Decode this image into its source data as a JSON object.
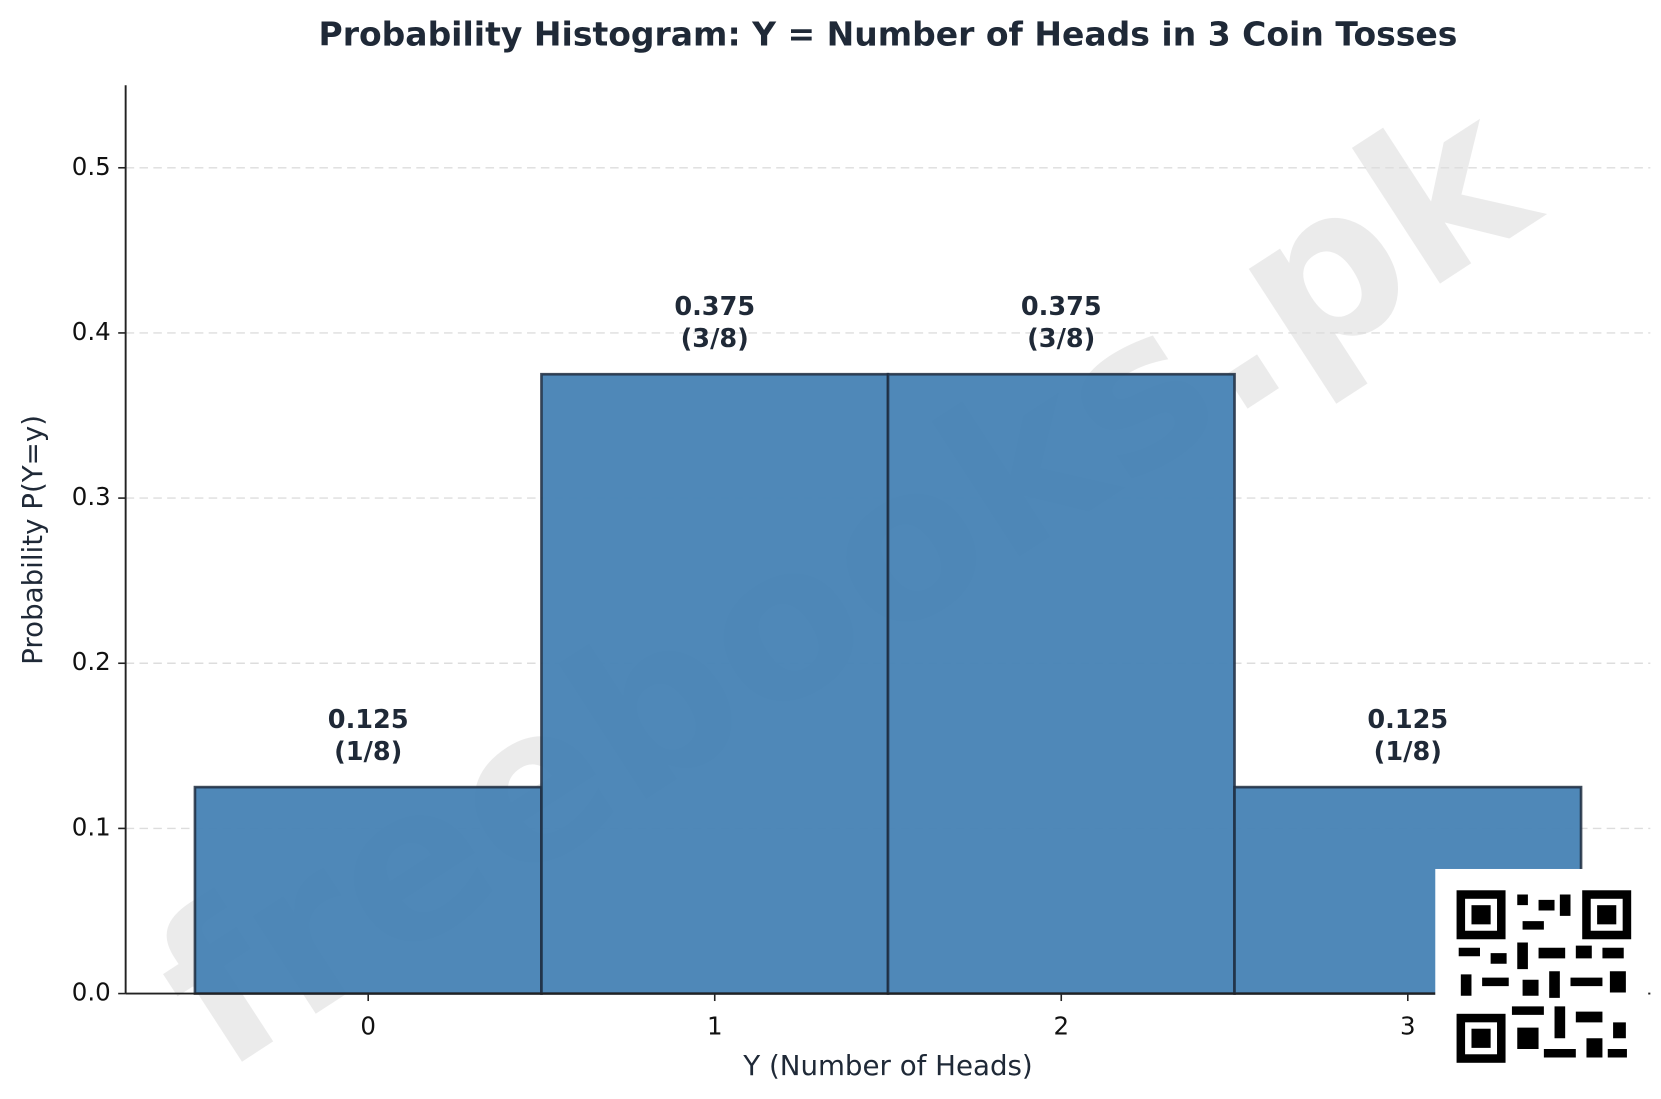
{
  "chart_data": {
    "type": "histogram",
    "title": "Probability Histogram: Y = Number of Heads in 3 Coin Tosses",
    "xlabel": "Y (Number of Heads)",
    "ylabel": "Probability P(Y=y)",
    "bins": [
      -0.5,
      0.5,
      1.5,
      2.5,
      3.5
    ],
    "values": [
      0.125,
      0.375,
      0.375,
      0.125
    ],
    "value_labels": [
      "0.125",
      "0.375",
      "0.375",
      "0.125"
    ],
    "fraction_labels": [
      "(1/8)",
      "(3/8)",
      "(3/8)",
      "(1/8)"
    ],
    "color": "#4682b4",
    "edgecolor": "#1e2d40",
    "xlim": [
      -0.7,
      3.7
    ],
    "xticks": [
      0,
      1,
      2,
      3
    ],
    "ylim": [
      0,
      0.55
    ],
    "yticks": [
      {
        "value": 0,
        "label": "0.0"
      },
      0.1,
      0.2,
      0.3,
      0.4,
      0.5
    ],
    "grid": true,
    "watermark": "freebooks.pk"
  }
}
